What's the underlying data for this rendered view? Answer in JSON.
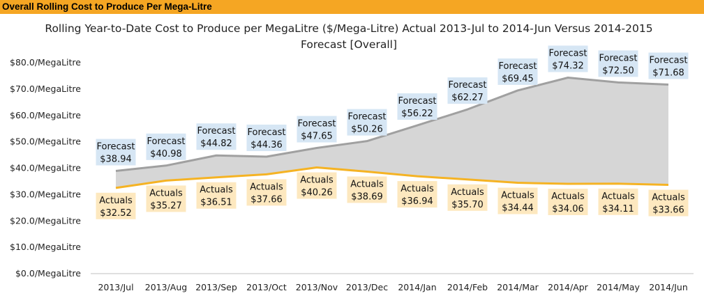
{
  "header": {
    "title": "Overall Rolling Cost to Produce Per Mega-Litre"
  },
  "chart_data": {
    "type": "area",
    "title": "Rolling Year-to-Date Cost to Produce per MegaLitre ($/Mega-Litre) Actual 2013-Jul to 2014-Jun Versus 2014-2015 Forecast [Overall]",
    "categories": [
      "2013/Jul",
      "2013/Aug",
      "2013/Sep",
      "2013/Oct",
      "2013/Nov",
      "2013/Dec",
      "2014/Jan",
      "2014/Feb",
      "2014/Mar",
      "2014/Apr",
      "2014/May",
      "2014/Jun"
    ],
    "ylim": [
      0,
      80
    ],
    "yticks": [
      0,
      10,
      20,
      30,
      40,
      50,
      60,
      70,
      80
    ],
    "ytick_labels": [
      "$0.0/MegaLitre",
      "$10.0/MegaLitre",
      "$20.0/MegaLitre",
      "$30.0/MegaLitre",
      "$40.0/MegaLitre",
      "$50.0/MegaLitre",
      "$60.0/MegaLitre",
      "$70.0/MegaLitre",
      "$80.0/MegaLitre"
    ],
    "grid": false,
    "series": [
      {
        "name": "Forecast",
        "color": "#a0a0a0",
        "fill": "#d6d6d6",
        "label_bg": "#d6e6f4",
        "values": [
          38.94,
          40.98,
          44.82,
          44.36,
          47.65,
          50.26,
          56.22,
          62.27,
          69.45,
          74.32,
          72.5,
          71.68
        ],
        "labels": [
          "$38.94",
          "$40.98",
          "$44.82",
          "$44.36",
          "$47.65",
          "$50.26",
          "$56.22",
          "$62.27",
          "$69.45",
          "$74.32",
          "$72.50",
          "$71.68"
        ]
      },
      {
        "name": "Actuals",
        "color": "#f5b324",
        "fill": "#ffffff",
        "label_bg": "#fde8bf",
        "values": [
          32.52,
          35.27,
          36.51,
          37.66,
          40.26,
          38.69,
          36.94,
          35.7,
          34.44,
          34.06,
          34.11,
          33.66
        ],
        "labels": [
          "$32.52",
          "$35.27",
          "$36.51",
          "$37.66",
          "$40.26",
          "$38.69",
          "$36.94",
          "$35.70",
          "$34.44",
          "$34.06",
          "$34.11",
          "$33.66"
        ]
      }
    ]
  }
}
